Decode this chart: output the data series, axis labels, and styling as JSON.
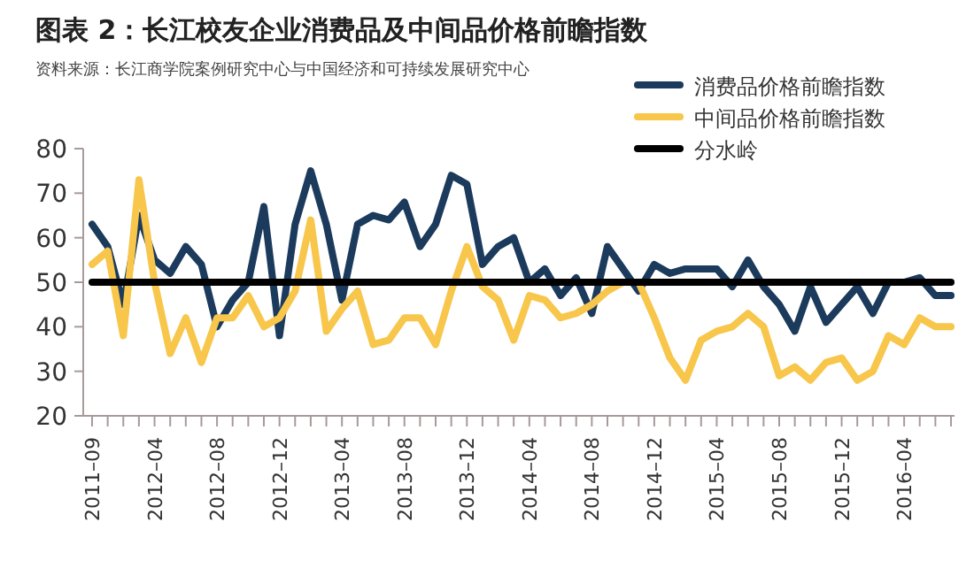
{
  "chart_data": {
    "type": "line",
    "title": "图表 2：长江校友企业消费品及中间品价格前瞻指数",
    "subtitle": "资料来源：长江商学院案例研究中心与中国经济和可持续发展研究中心",
    "categories": [
      "2011–09",
      null,
      null,
      null,
      "2012–04",
      null,
      null,
      null,
      "2012–08",
      null,
      null,
      null,
      "2012–12",
      null,
      null,
      null,
      "2013–04",
      null,
      null,
      null,
      "2013–08",
      null,
      null,
      null,
      "2013–12",
      null,
      null,
      null,
      "2014–04",
      null,
      null,
      null,
      "2014–08",
      null,
      null,
      null,
      "2014–12",
      null,
      null,
      null,
      "2015–04",
      null,
      null,
      null,
      "2015–08",
      null,
      null,
      null,
      "2015–12",
      null,
      null,
      null,
      "2016–04",
      null,
      null,
      null
    ],
    "series": [
      {
        "name": "消费品价格前瞻指数",
        "color": "#1b3a5c",
        "values": [
          63,
          58,
          45,
          65,
          55,
          52,
          58,
          54,
          40,
          46,
          50,
          67,
          38,
          63,
          75,
          63,
          46,
          63,
          65,
          64,
          68,
          58,
          63,
          74,
          72,
          54,
          58,
          60,
          50,
          53,
          47,
          51,
          43,
          58,
          53,
          48,
          54,
          52,
          53,
          53,
          53,
          49,
          55,
          49,
          45,
          39,
          49,
          41,
          45,
          49,
          43,
          50,
          50,
          51,
          47,
          47
        ]
      },
      {
        "name": "中间品价格前瞻指数",
        "color": "#f7c64a",
        "values": [
          54,
          57,
          38,
          73,
          50,
          34,
          42,
          32,
          42,
          42,
          47,
          40,
          42,
          48,
          64,
          39,
          44,
          48,
          36,
          37,
          42,
          42,
          36,
          48,
          58,
          49,
          46,
          37,
          47,
          46,
          42,
          43,
          45,
          48,
          50,
          50,
          42,
          33,
          28,
          37,
          39,
          40,
          43,
          40,
          29,
          31,
          28,
          32,
          33,
          28,
          30,
          38,
          36,
          42,
          40,
          40
        ]
      },
      {
        "name": "分水岭",
        "color": "#000000",
        "values": [
          50,
          50,
          50,
          50,
          50,
          50,
          50,
          50,
          50,
          50,
          50,
          50,
          50,
          50,
          50,
          50,
          50,
          50,
          50,
          50,
          50,
          50,
          50,
          50,
          50,
          50,
          50,
          50,
          50,
          50,
          50,
          50,
          50,
          50,
          50,
          50,
          50,
          50,
          50,
          50,
          50,
          50,
          50,
          50,
          50,
          50,
          50,
          50,
          50,
          50,
          50,
          50,
          50,
          50,
          50,
          50
        ]
      }
    ],
    "ylim": [
      20,
      80
    ],
    "yticks": [
      20,
      30,
      40,
      50,
      60,
      70,
      80
    ],
    "grid": false,
    "legend": "top right",
    "marker": "none",
    "line_style": "solid"
  }
}
